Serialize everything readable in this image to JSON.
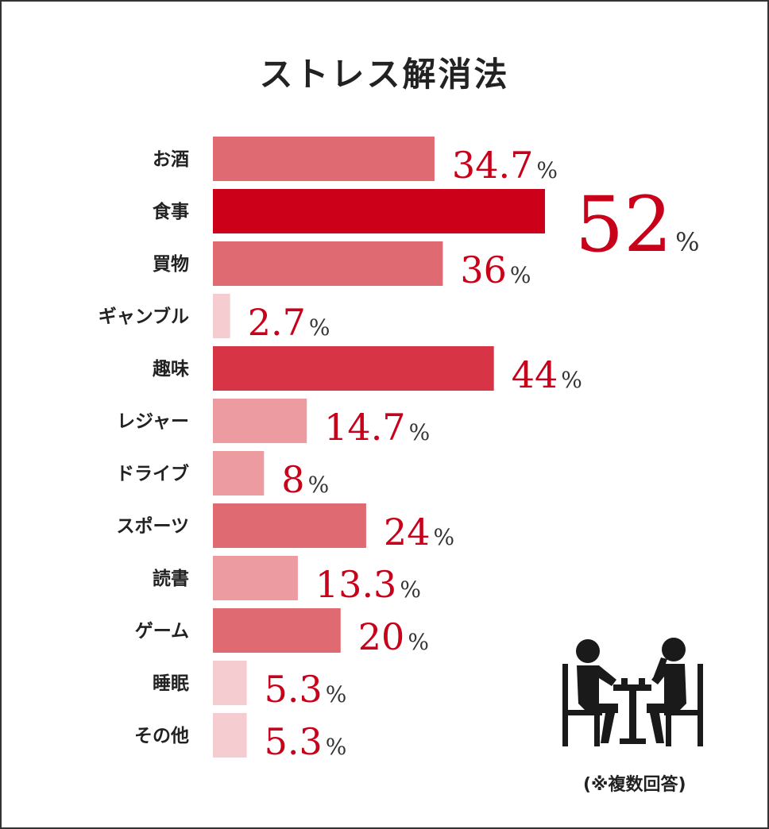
{
  "chart_data": {
    "type": "bar",
    "orientation": "horizontal",
    "title": "ストレス解消法",
    "categories": [
      "お酒",
      "食事",
      "買物",
      "ギャンブル",
      "趣味",
      "レジャー",
      "ドライブ",
      "スポーツ",
      "読書",
      "ゲーム",
      "睡眠",
      "その他"
    ],
    "values": [
      34.7,
      52,
      36,
      2.7,
      44,
      14.7,
      8,
      24,
      13.3,
      20,
      5.3,
      5.3
    ],
    "value_labels": [
      "34.7",
      "52",
      "36",
      "2.7",
      "44",
      "14.7",
      "8",
      "24",
      "13.3",
      "20",
      "5.3",
      "5.3"
    ],
    "unit": "%",
    "bar_colors": [
      "#e06a72",
      "#cc0018",
      "#e06a72",
      "#f5cdd1",
      "#d73445",
      "#ec9ba1",
      "#ec9ba1",
      "#e06a72",
      "#ec9ba1",
      "#e06a72",
      "#f5cdd1",
      "#f5cdd1"
    ],
    "value_color": "#c8001a",
    "xlim": [
      0,
      52
    ],
    "grid": false,
    "legend": "none"
  },
  "note": "(※複数回答)",
  "illustration": {
    "icon": "two-people-at-table-icon",
    "color": "#1a1a1a"
  }
}
